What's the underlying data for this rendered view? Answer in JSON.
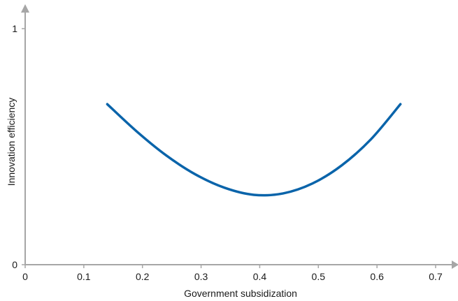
{
  "chart_data": {
    "type": "line",
    "title": "",
    "xlabel": "Government subsidization",
    "ylabel": "Innovation efficiency",
    "xlim": [
      0,
      0.7
    ],
    "ylim": [
      0,
      1
    ],
    "x_ticks": [
      "0",
      "0.1",
      "0.2",
      "0.3",
      "0.4",
      "0.5",
      "0.6",
      "0.7"
    ],
    "y_ticks": [
      "0",
      "1"
    ],
    "grid": false,
    "legend": "none",
    "series": [
      {
        "color": "#0a64aa",
        "x": [
          0.14,
          0.19,
          0.24,
          0.29,
          0.34,
          0.39,
          0.44,
          0.49,
          0.54,
          0.59,
          0.64
        ],
        "y": [
          0.68,
          0.565,
          0.464,
          0.383,
          0.326,
          0.296,
          0.302,
          0.344,
          0.421,
          0.532,
          0.68
        ]
      }
    ]
  },
  "colors": {
    "axis": "#a6a6a6",
    "text": "#1a1a1a"
  }
}
